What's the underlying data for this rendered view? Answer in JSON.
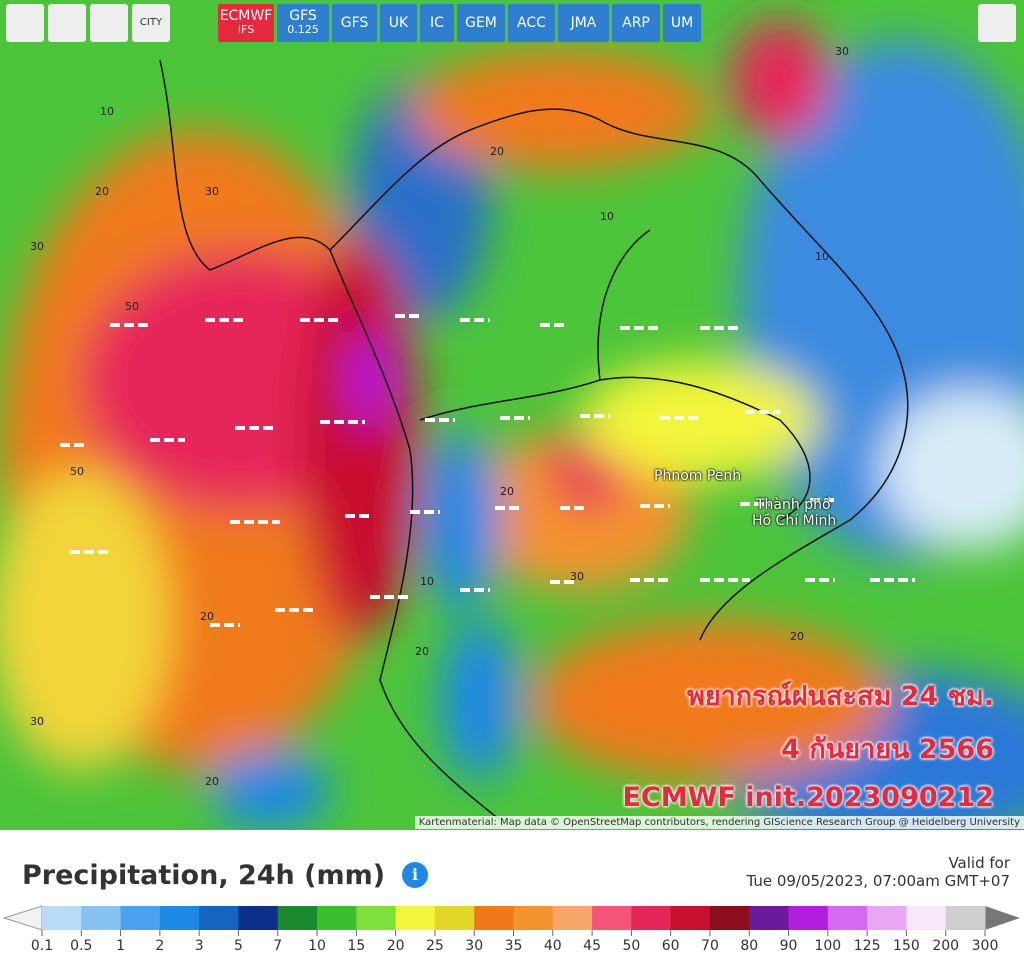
{
  "toolbar": {
    "city": "CITY",
    "models": [
      {
        "name": "ECMWF",
        "sub": "IFS",
        "active": true
      },
      {
        "name": "GFS",
        "sub": "0.125"
      },
      {
        "name": "GFS"
      },
      {
        "name": "UK"
      },
      {
        "name": "IC"
      },
      {
        "name": "GEM"
      },
      {
        "name": "ACC"
      },
      {
        "name": "JMA"
      },
      {
        "name": "ARP"
      },
      {
        "name": "UM"
      }
    ]
  },
  "map": {
    "places": [
      "Phnom Penh",
      "Thành phố",
      "Hồ Chí Minh"
    ],
    "contour_labels": [
      10,
      20,
      30,
      30,
      50,
      50,
      20,
      10,
      20,
      30,
      20,
      10,
      30,
      20,
      10,
      20,
      30,
      20
    ],
    "overlay": [
      "พยากรณ์ฝนสะสม 24 ชม.",
      "4 กันยายน 2566",
      "ECMWF init.2023090212"
    ],
    "attribution": "Kartenmaterial: Map data © OpenStreetMap contributors, rendering GIScience Research Group @ Heidelberg University"
  },
  "legend": {
    "title": "Precipitation, 24h (mm)",
    "valid_label": "Valid for",
    "valid_time": "Tue 09/05/2023, 07:00am GMT+07",
    "stops": [
      0.1,
      0.5,
      1,
      2,
      3,
      5,
      7,
      10,
      15,
      20,
      25,
      30,
      35,
      40,
      45,
      50,
      60,
      70,
      80,
      90,
      100,
      125,
      150,
      200,
      300
    ],
    "colors": [
      "#b8dcf5",
      "#86c3f0",
      "#4aa3ec",
      "#1e88e5",
      "#1565c0",
      "#0d2f8a",
      "#1b8a2e",
      "#3cbf2e",
      "#7ee03a",
      "#f3f53a",
      "#e3d82a",
      "#f07a1a",
      "#f5932e",
      "#f7a76a",
      "#f25578",
      "#e6265a",
      "#c8102e",
      "#8b0e1e",
      "#6a1a9a",
      "#b21ee0",
      "#d56af0",
      "#e9a6f5",
      "#f8e6fb",
      "#cfcfcf"
    ]
  }
}
